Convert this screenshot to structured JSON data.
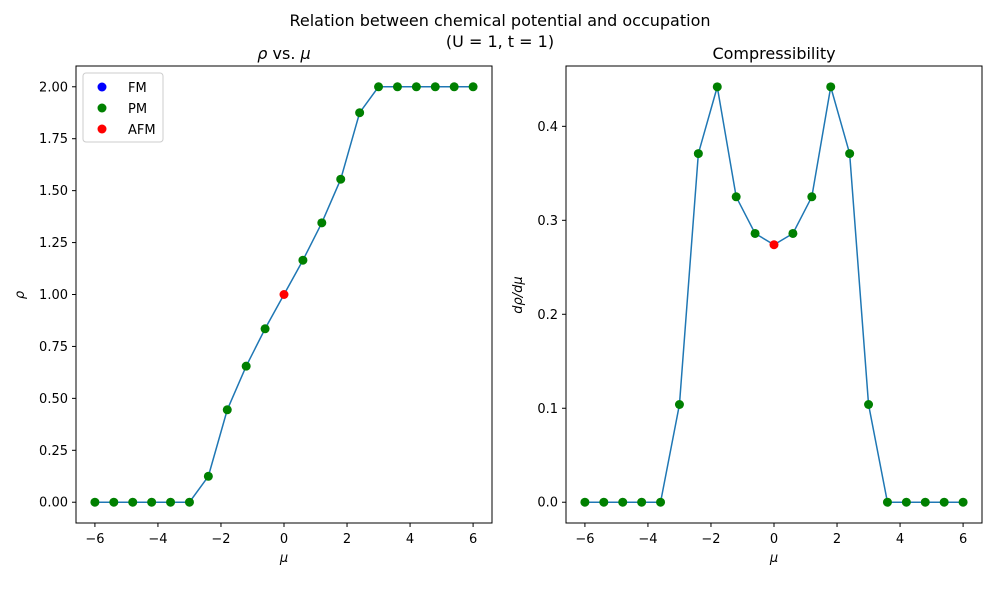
{
  "figure": {
    "suptitle_line1": "Relation between chemical potential and occupation",
    "suptitle_line2": "(U = 1, t = 1)"
  },
  "chart_data": [
    {
      "type": "line",
      "title_prefix": "ρ",
      "title_suffix": " vs. ",
      "title_var": "μ",
      "xlabel": "μ",
      "ylabel": "ρ",
      "xlim": [
        -6.6,
        6.6
      ],
      "ylim": [
        -0.1,
        2.1
      ],
      "xticks": [
        -6,
        -4,
        -2,
        0,
        2,
        4,
        6
      ],
      "xtick_labels": [
        "−6",
        "−4",
        "−2",
        "0",
        "2",
        "4",
        "6"
      ],
      "yticks": [
        0.0,
        0.25,
        0.5,
        0.75,
        1.0,
        1.25,
        1.5,
        1.75,
        2.0
      ],
      "ytick_labels": [
        "0.00",
        "0.25",
        "0.50",
        "0.75",
        "1.00",
        "1.25",
        "1.50",
        "1.75",
        "2.00"
      ],
      "grid": false,
      "legend": {
        "placement": "upper-left",
        "entries": [
          {
            "label": "FM",
            "color": "#0000ff"
          },
          {
            "label": "PM",
            "color": "#008000"
          },
          {
            "label": "AFM",
            "color": "#ff0000"
          }
        ]
      },
      "line_color": "#1f77b4",
      "x": [
        -6.0,
        -5.4,
        -4.8,
        -4.2,
        -3.6,
        -3.0,
        -2.4,
        -1.8,
        -1.2,
        -0.6,
        0.0,
        0.6,
        1.2,
        1.8,
        2.4,
        3.0,
        3.6,
        4.2,
        4.8,
        5.4,
        6.0
      ],
      "y": [
        0.0,
        0.0,
        0.0,
        0.0,
        0.0,
        0.0,
        0.125,
        0.445,
        0.655,
        0.835,
        1.0,
        1.165,
        1.345,
        1.555,
        1.875,
        2.0,
        2.0,
        2.0,
        2.0,
        2.0,
        2.0
      ],
      "phases": [
        "PM",
        "PM",
        "PM",
        "PM",
        "PM",
        "PM",
        "PM",
        "PM",
        "PM",
        "PM",
        "AFM",
        "PM",
        "PM",
        "PM",
        "PM",
        "PM",
        "PM",
        "PM",
        "PM",
        "PM",
        "PM"
      ]
    },
    {
      "type": "line",
      "title": "Compressibility",
      "xlabel": "μ",
      "ylabel": "dρ/dμ",
      "xlim": [
        -6.6,
        6.6
      ],
      "ylim": [
        -0.0221,
        0.4642
      ],
      "xticks": [
        -6,
        -4,
        -2,
        0,
        2,
        4,
        6
      ],
      "xtick_labels": [
        "−6",
        "−4",
        "−2",
        "0",
        "2",
        "4",
        "6"
      ],
      "yticks": [
        0.0,
        0.1,
        0.2,
        0.3,
        0.4
      ],
      "ytick_labels": [
        "0.0",
        "0.1",
        "0.2",
        "0.3",
        "0.4"
      ],
      "grid": false,
      "line_color": "#1f77b4",
      "x": [
        -6.0,
        -5.4,
        -4.8,
        -4.2,
        -3.6,
        -3.0,
        -2.4,
        -1.8,
        -1.2,
        -0.6,
        0.0,
        0.6,
        1.2,
        1.8,
        2.4,
        3.0,
        3.6,
        4.2,
        4.8,
        5.4,
        6.0
      ],
      "y": [
        0.0,
        0.0,
        0.0,
        0.0,
        0.0,
        0.104,
        0.371,
        0.442,
        0.325,
        0.286,
        0.274,
        0.286,
        0.325,
        0.442,
        0.371,
        0.104,
        0.0,
        0.0,
        0.0,
        0.0,
        0.0
      ],
      "phases": [
        "PM",
        "PM",
        "PM",
        "PM",
        "PM",
        "PM",
        "PM",
        "PM",
        "PM",
        "PM",
        "AFM",
        "PM",
        "PM",
        "PM",
        "PM",
        "PM",
        "PM",
        "PM",
        "PM",
        "PM",
        "PM"
      ]
    }
  ],
  "phase_colors": {
    "FM": "#0000ff",
    "PM": "#008000",
    "AFM": "#ff0000"
  }
}
